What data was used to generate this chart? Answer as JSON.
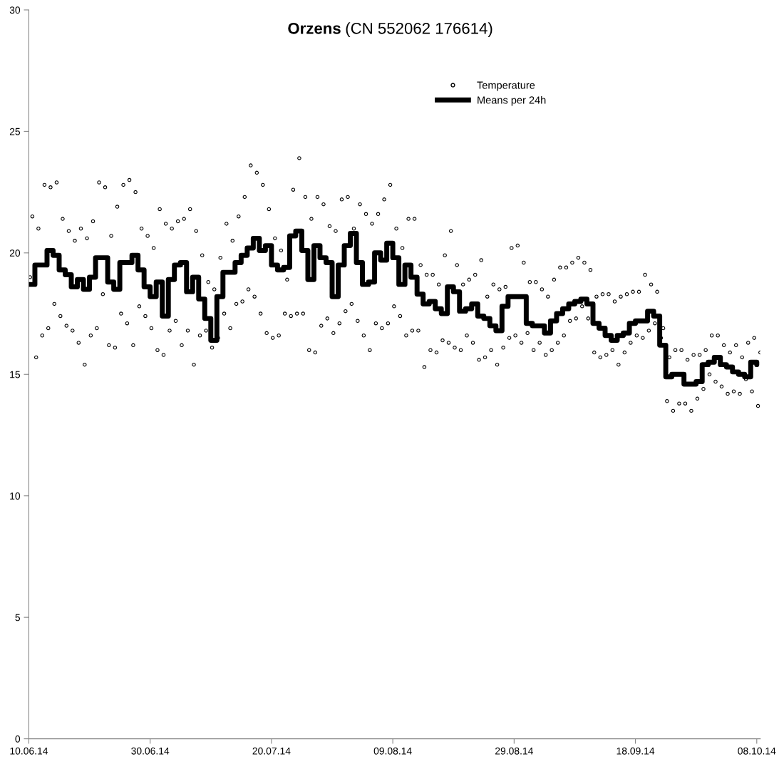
{
  "chart_data": {
    "type": "scatter",
    "title": "Orzens (CN 552062 176614)",
    "legend": "top right",
    "xlim": [
      "2014-06-10",
      "2014-10-08T14:00"
    ],
    "xticks": [
      {
        "value": "2014-06-10",
        "label": "10.06.14"
      },
      {
        "value": "2014-06-30",
        "label": "30.06.14"
      },
      {
        "value": "2014-07-20",
        "label": "20.07.14"
      },
      {
        "value": "2014-08-09",
        "label": "09.08.14"
      },
      {
        "value": "2014-08-29",
        "label": "29.08.14"
      },
      {
        "value": "2014-09-18",
        "label": "18.09.14"
      },
      {
        "value": "2014-10-08",
        "label": "08.10.14"
      }
    ],
    "ylim": [
      0,
      30
    ],
    "yticks": [
      0,
      5,
      10,
      15,
      20,
      25,
      30
    ],
    "series": [
      {
        "name": "Temperature",
        "marker": "circle",
        "color": "#000000",
        "x": [
          "2014-06-10T05:00",
          "2014-06-10T14:00",
          "2014-06-11T05:00",
          "2014-06-11T14:00",
          "2014-06-12T05:00",
          "2014-06-12T14:00",
          "2014-06-13T05:00",
          "2014-06-13T14:00",
          "2014-06-14T05:00",
          "2014-06-14T14:00",
          "2014-06-15T05:00",
          "2014-06-15T14:00",
          "2014-06-16T05:00",
          "2014-06-16T14:00",
          "2014-06-17T05:00",
          "2014-06-17T14:00",
          "2014-06-18T05:00",
          "2014-06-18T14:00",
          "2014-06-19T05:00",
          "2014-06-19T14:00",
          "2014-06-20T05:00",
          "2014-06-20T14:00",
          "2014-06-21T05:00",
          "2014-06-21T14:00",
          "2014-06-22T05:00",
          "2014-06-22T14:00",
          "2014-06-23T05:00",
          "2014-06-23T14:00",
          "2014-06-24T05:00",
          "2014-06-24T14:00",
          "2014-06-25T05:00",
          "2014-06-25T14:00",
          "2014-06-26T05:00",
          "2014-06-26T14:00",
          "2014-06-27T05:00",
          "2014-06-27T14:00",
          "2014-06-28T05:00",
          "2014-06-28T14:00",
          "2014-06-29T05:00",
          "2014-06-29T14:00",
          "2014-06-30T05:00",
          "2014-06-30T14:00",
          "2014-07-01T05:00",
          "2014-07-01T14:00",
          "2014-07-02T05:00",
          "2014-07-02T14:00",
          "2014-07-03T05:00",
          "2014-07-03T14:00",
          "2014-07-04T05:00",
          "2014-07-04T14:00",
          "2014-07-05T05:00",
          "2014-07-05T14:00",
          "2014-07-06T05:00",
          "2014-07-06T14:00",
          "2014-07-07T05:00",
          "2014-07-07T14:00",
          "2014-07-08T05:00",
          "2014-07-08T14:00",
          "2014-07-09T05:00",
          "2014-07-09T14:00",
          "2014-07-10T05:00",
          "2014-07-10T14:00",
          "2014-07-11T05:00",
          "2014-07-11T14:00",
          "2014-07-12T05:00",
          "2014-07-12T14:00",
          "2014-07-13T05:00",
          "2014-07-13T14:00",
          "2014-07-14T05:00",
          "2014-07-14T14:00",
          "2014-07-15T05:00",
          "2014-07-15T14:00",
          "2014-07-16T05:00",
          "2014-07-16T14:00",
          "2014-07-17T05:00",
          "2014-07-17T14:00",
          "2014-07-18T05:00",
          "2014-07-18T14:00",
          "2014-07-19T05:00",
          "2014-07-19T14:00",
          "2014-07-20T05:00",
          "2014-07-20T14:00",
          "2014-07-21T05:00",
          "2014-07-21T14:00",
          "2014-07-22T05:00",
          "2014-07-22T14:00",
          "2014-07-23T05:00",
          "2014-07-23T14:00",
          "2014-07-24T05:00",
          "2014-07-24T14:00",
          "2014-07-25T05:00",
          "2014-07-25T14:00",
          "2014-07-26T05:00",
          "2014-07-26T14:00",
          "2014-07-27T05:00",
          "2014-07-27T14:00",
          "2014-07-28T05:00",
          "2014-07-28T14:00",
          "2014-07-29T05:00",
          "2014-07-29T14:00",
          "2014-07-30T05:00",
          "2014-07-30T14:00",
          "2014-07-31T05:00",
          "2014-07-31T14:00",
          "2014-08-01T05:00",
          "2014-08-01T14:00",
          "2014-08-02T05:00",
          "2014-08-02T14:00",
          "2014-08-03T05:00",
          "2014-08-03T14:00",
          "2014-08-04T05:00",
          "2014-08-04T14:00",
          "2014-08-05T05:00",
          "2014-08-05T14:00",
          "2014-08-06T05:00",
          "2014-08-06T14:00",
          "2014-08-07T05:00",
          "2014-08-07T14:00",
          "2014-08-08T05:00",
          "2014-08-08T14:00",
          "2014-08-09T05:00",
          "2014-08-09T14:00",
          "2014-08-10T05:00",
          "2014-08-10T14:00",
          "2014-08-11T05:00",
          "2014-08-11T14:00",
          "2014-08-12T05:00",
          "2014-08-12T14:00",
          "2014-08-13T05:00",
          "2014-08-13T14:00",
          "2014-08-14T05:00",
          "2014-08-14T14:00",
          "2014-08-15T05:00",
          "2014-08-15T14:00",
          "2014-08-16T05:00",
          "2014-08-16T14:00",
          "2014-08-17T05:00",
          "2014-08-17T14:00",
          "2014-08-18T05:00",
          "2014-08-18T14:00",
          "2014-08-19T05:00",
          "2014-08-19T14:00",
          "2014-08-20T05:00",
          "2014-08-20T14:00",
          "2014-08-21T05:00",
          "2014-08-21T14:00",
          "2014-08-22T05:00",
          "2014-08-22T14:00",
          "2014-08-23T05:00",
          "2014-08-23T14:00",
          "2014-08-24T05:00",
          "2014-08-24T14:00",
          "2014-08-25T05:00",
          "2014-08-25T14:00",
          "2014-08-26T05:00",
          "2014-08-26T14:00",
          "2014-08-27T05:00",
          "2014-08-27T14:00",
          "2014-08-28T05:00",
          "2014-08-28T14:00",
          "2014-08-29T05:00",
          "2014-08-29T14:00",
          "2014-08-30T05:00",
          "2014-08-30T14:00",
          "2014-08-31T05:00",
          "2014-08-31T14:00",
          "2014-09-01T05:00",
          "2014-09-01T14:00",
          "2014-09-02T05:00",
          "2014-09-02T14:00",
          "2014-09-03T05:00",
          "2014-09-03T14:00",
          "2014-09-04T05:00",
          "2014-09-04T14:00",
          "2014-09-05T05:00",
          "2014-09-05T14:00",
          "2014-09-06T05:00",
          "2014-09-06T14:00",
          "2014-09-07T05:00",
          "2014-09-07T14:00",
          "2014-09-08T05:00",
          "2014-09-08T14:00",
          "2014-09-09T05:00",
          "2014-09-09T14:00",
          "2014-09-10T05:00",
          "2014-09-10T14:00",
          "2014-09-11T05:00",
          "2014-09-11T14:00",
          "2014-09-12T05:00",
          "2014-09-12T14:00",
          "2014-09-13T05:00",
          "2014-09-13T14:00",
          "2014-09-14T05:00",
          "2014-09-14T14:00",
          "2014-09-15T05:00",
          "2014-09-15T14:00",
          "2014-09-16T05:00",
          "2014-09-16T14:00",
          "2014-09-17T05:00",
          "2014-09-17T14:00",
          "2014-09-18T05:00",
          "2014-09-18T14:00",
          "2014-09-19T05:00",
          "2014-09-19T14:00",
          "2014-09-20T05:00",
          "2014-09-20T14:00",
          "2014-09-21T05:00",
          "2014-09-21T14:00",
          "2014-09-22T05:00",
          "2014-09-22T14:00",
          "2014-09-23T05:00",
          "2014-09-23T14:00",
          "2014-09-24T05:00",
          "2014-09-24T14:00",
          "2014-09-25T05:00",
          "2014-09-25T14:00",
          "2014-09-26T05:00",
          "2014-09-26T14:00",
          "2014-09-27T05:00",
          "2014-09-27T14:00",
          "2014-09-28T05:00",
          "2014-09-28T14:00",
          "2014-09-29T05:00",
          "2014-09-29T14:00",
          "2014-09-30T05:00",
          "2014-09-30T14:00",
          "2014-10-01T05:00",
          "2014-10-01T14:00",
          "2014-10-02T05:00",
          "2014-10-02T14:00",
          "2014-10-03T05:00",
          "2014-10-03T14:00",
          "2014-10-04T05:00",
          "2014-10-04T14:00",
          "2014-10-05T05:00",
          "2014-10-05T14:00",
          "2014-10-06T05:00",
          "2014-10-06T14:00",
          "2014-10-07T05:00",
          "2014-10-07T14:00",
          "2014-10-08T05:00",
          "2014-10-08T14:00"
        ],
        "values": [
          19.0,
          21.5,
          15.7,
          21.0,
          16.6,
          22.8,
          16.9,
          22.7,
          17.9,
          22.9,
          17.4,
          21.4,
          17.0,
          20.9,
          16.8,
          20.5,
          16.3,
          21.0,
          15.4,
          20.6,
          16.6,
          21.3,
          16.9,
          22.9,
          18.3,
          22.7,
          16.2,
          20.7,
          16.1,
          21.9,
          17.5,
          22.8,
          17.1,
          23.0,
          16.2,
          22.5,
          17.8,
          21.0,
          17.4,
          20.7,
          16.9,
          20.2,
          16.0,
          21.8,
          15.8,
          21.2,
          16.8,
          21.0,
          17.2,
          21.3,
          16.2,
          21.4,
          16.8,
          21.8,
          15.4,
          20.9,
          16.6,
          19.9,
          16.8,
          18.8,
          16.1,
          18.5,
          16.5,
          19.8,
          17.5,
          21.2,
          16.9,
          20.5,
          17.9,
          21.5,
          18.0,
          22.3,
          18.5,
          23.6,
          18.2,
          23.3,
          17.5,
          22.8,
          16.7,
          21.8,
          16.5,
          20.6,
          16.6,
          20.1,
          17.5,
          18.9,
          17.4,
          22.6,
          17.5,
          23.9,
          17.5,
          22.3,
          16.0,
          21.4,
          15.9,
          22.3,
          17.0,
          22.0,
          17.3,
          21.1,
          16.7,
          20.9,
          17.1,
          22.2,
          17.6,
          22.3,
          17.9,
          21.0,
          17.2,
          22.0,
          16.6,
          21.6,
          16.0,
          21.2,
          17.1,
          21.6,
          16.9,
          22.2,
          17.1,
          22.8,
          17.8,
          21.0,
          17.4,
          20.2,
          16.6,
          21.4,
          16.8,
          21.4,
          16.8,
          19.5,
          15.3,
          19.1,
          16.0,
          19.1,
          15.9,
          18.7,
          16.4,
          19.9,
          16.3,
          20.9,
          16.1,
          19.5,
          16.0,
          18.7,
          16.6,
          18.9,
          16.3,
          19.1,
          15.6,
          19.7,
          15.7,
          18.2,
          16.0,
          18.7,
          15.4,
          18.5,
          16.1,
          18.6,
          16.5,
          20.2,
          16.6,
          20.3,
          16.3,
          19.6,
          16.7,
          18.8,
          16.0,
          18.8,
          16.3,
          18.5,
          15.8,
          18.2,
          16.0,
          18.9,
          16.3,
          19.4,
          16.6,
          19.4,
          17.2,
          19.6,
          17.3,
          19.8,
          17.8,
          19.6,
          17.3,
          19.3,
          15.9,
          18.2,
          15.7,
          18.3,
          15.8,
          18.3,
          16.0,
          18.0,
          15.4,
          18.2,
          15.9,
          18.3,
          16.3,
          18.4,
          16.6,
          18.4,
          16.5,
          19.1,
          16.8,
          18.7,
          17.1,
          18.4,
          16.5,
          16.9,
          13.9,
          15.7,
          13.5,
          16.0,
          13.8,
          16.0,
          13.8,
          15.6,
          13.5,
          15.8,
          14.0,
          15.8,
          14.4,
          16.0,
          15.0,
          16.6,
          14.7,
          16.6,
          14.5,
          16.2,
          14.2,
          15.9,
          14.3,
          16.2,
          14.2,
          15.7,
          14.8,
          16.3,
          14.3,
          16.5,
          13.7,
          15.9
        ]
      },
      {
        "name": "Means per 24h",
        "type": "step",
        "line_style": "solid",
        "color": "#000000",
        "x": [
          "2014-06-10",
          "2014-06-11",
          "2014-06-12",
          "2014-06-13",
          "2014-06-14",
          "2014-06-15",
          "2014-06-16",
          "2014-06-17",
          "2014-06-18",
          "2014-06-19",
          "2014-06-20",
          "2014-06-21",
          "2014-06-22",
          "2014-06-23",
          "2014-06-24",
          "2014-06-25",
          "2014-06-26",
          "2014-06-27",
          "2014-06-28",
          "2014-06-29",
          "2014-06-30",
          "2014-07-01",
          "2014-07-02",
          "2014-07-03",
          "2014-07-04",
          "2014-07-05",
          "2014-07-06",
          "2014-07-07",
          "2014-07-08",
          "2014-07-09",
          "2014-07-10",
          "2014-07-11",
          "2014-07-12",
          "2014-07-13",
          "2014-07-14",
          "2014-07-15",
          "2014-07-16",
          "2014-07-17",
          "2014-07-18",
          "2014-07-19",
          "2014-07-20",
          "2014-07-21",
          "2014-07-22",
          "2014-07-23",
          "2014-07-24",
          "2014-07-25",
          "2014-07-26",
          "2014-07-27",
          "2014-07-28",
          "2014-07-29",
          "2014-07-30",
          "2014-07-31",
          "2014-08-01",
          "2014-08-02",
          "2014-08-03",
          "2014-08-04",
          "2014-08-05",
          "2014-08-06",
          "2014-08-07",
          "2014-08-08",
          "2014-08-09",
          "2014-08-10",
          "2014-08-11",
          "2014-08-12",
          "2014-08-13",
          "2014-08-14",
          "2014-08-15",
          "2014-08-16",
          "2014-08-17",
          "2014-08-18",
          "2014-08-19",
          "2014-08-20",
          "2014-08-21",
          "2014-08-22",
          "2014-08-23",
          "2014-08-24",
          "2014-08-25",
          "2014-08-26",
          "2014-08-27",
          "2014-08-28",
          "2014-08-29",
          "2014-08-30",
          "2014-08-31",
          "2014-09-01",
          "2014-09-02",
          "2014-09-03",
          "2014-09-04",
          "2014-09-05",
          "2014-09-06",
          "2014-09-07",
          "2014-09-08",
          "2014-09-09",
          "2014-09-10",
          "2014-09-11",
          "2014-09-12",
          "2014-09-13",
          "2014-09-14",
          "2014-09-15",
          "2014-09-16",
          "2014-09-17",
          "2014-09-18",
          "2014-09-19",
          "2014-09-20",
          "2014-09-21",
          "2014-09-22",
          "2014-09-23",
          "2014-09-24",
          "2014-09-25",
          "2014-09-26",
          "2014-09-27",
          "2014-09-28",
          "2014-09-29",
          "2014-09-30",
          "2014-10-01",
          "2014-10-02",
          "2014-10-03",
          "2014-10-04",
          "2014-10-05",
          "2014-10-06",
          "2014-10-07",
          "2014-10-08"
        ],
        "values": [
          18.7,
          19.5,
          19.5,
          20.1,
          19.9,
          19.3,
          19.1,
          18.6,
          18.9,
          18.5,
          19.0,
          19.8,
          19.8,
          18.8,
          18.5,
          19.6,
          19.6,
          19.9,
          19.3,
          18.6,
          18.2,
          18.8,
          17.4,
          18.9,
          19.5,
          19.6,
          18.4,
          19.0,
          18.1,
          17.3,
          16.4,
          18.2,
          19.2,
          19.2,
          19.6,
          19.9,
          20.2,
          20.6,
          20.1,
          20.3,
          19.5,
          19.3,
          19.4,
          20.7,
          20.9,
          20.1,
          18.9,
          20.3,
          19.8,
          19.6,
          18.2,
          19.5,
          20.3,
          20.8,
          19.6,
          18.7,
          18.8,
          20.0,
          19.7,
          20.4,
          19.8,
          18.7,
          19.5,
          19.0,
          18.3,
          17.9,
          18.0,
          17.7,
          17.5,
          18.6,
          18.4,
          17.6,
          17.7,
          17.9,
          17.4,
          17.3,
          17.0,
          16.8,
          17.8,
          18.2,
          18.2,
          18.2,
          17.1,
          17.0,
          17.0,
          16.7,
          17.2,
          17.5,
          17.7,
          17.9,
          18.0,
          18.1,
          17.9,
          17.1,
          16.9,
          16.6,
          16.4,
          16.6,
          16.7,
          17.1,
          17.2,
          17.2,
          17.6,
          17.4,
          16.2,
          14.9,
          15.0,
          15.0,
          14.6,
          14.6,
          14.7,
          15.4,
          15.5,
          15.7,
          15.4,
          15.3,
          15.1,
          15.0,
          14.9,
          15.5,
          15.4
        ]
      }
    ]
  }
}
